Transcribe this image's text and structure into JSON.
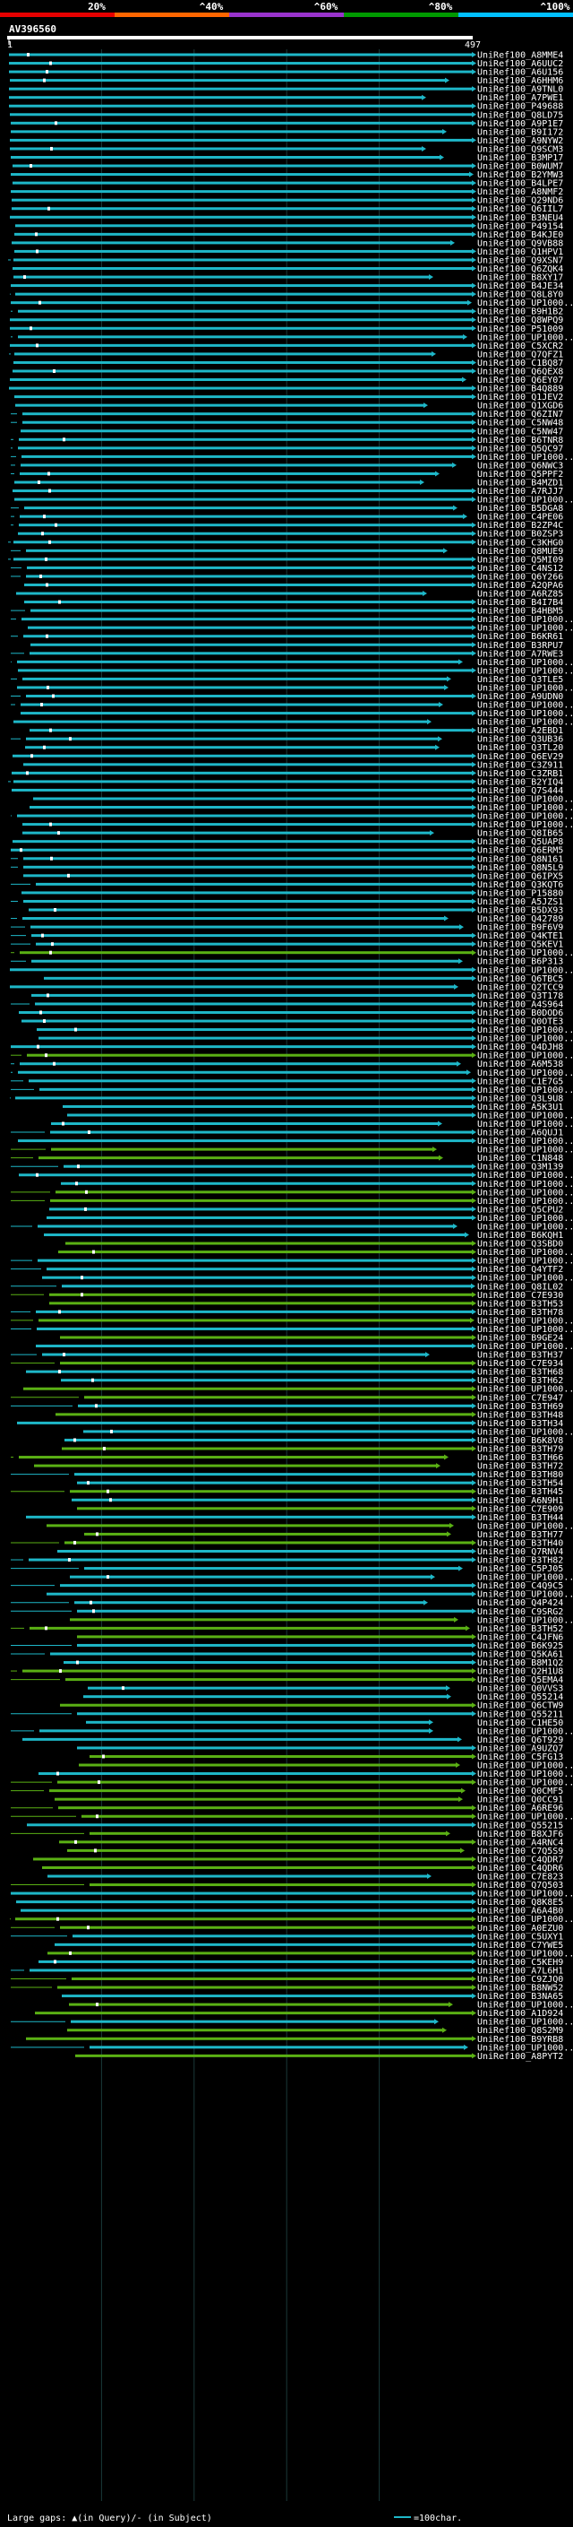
{
  "chart_data": {
    "type": "alignment-overview",
    "query_id": "AV396560",
    "query_length": 497,
    "ruler": {
      "start_label": "1",
      "end_label": "497"
    },
    "identity_legend": [
      {
        "label": "20%",
        "color": "#e60000"
      },
      {
        "label": "^40%",
        "color": "#ff6600"
      },
      {
        "label": "^60%",
        "color": "#9933cc"
      },
      {
        "label": "^80%",
        "color": "#009900"
      },
      {
        "label": "^100%",
        "color": "#00c0ff"
      }
    ],
    "footer": {
      "gaps_label": "Large gaps: ▲(in Query)/- (in Subject)",
      "scale_label": "=100char."
    },
    "colors": {
      "hi": "#1eb7c8",
      "mid": "#5ab014",
      "gap": "#ffffff"
    },
    "hits": [
      "UniRef100_A8MME4",
      "UniRef100_A6UUC2",
      "UniRef100_A6U156",
      "UniRef100_A6HHM6",
      "UniRef100_A9TNL0",
      "UniRef100_A7PWE1",
      "UniRef100_P49688",
      "UniRef100_Q8LD75",
      "UniRef100_A9P1E7",
      "UniRef100_B9I172",
      "UniRef100_A9NYW2",
      "UniRef100_Q9SCM3",
      "UniRef100_B3MP17",
      "UniRef100_B0WUM7",
      "UniRef100_B2YMW3",
      "UniRef100_B4LPE7",
      "UniRef100_A8NMF2",
      "UniRef100_Q29ND6",
      "UniRef100_Q6IIL7",
      "UniRef100_B3NEU4",
      "UniRef100_P49154",
      "UniRef100_B4KJE0",
      "UniRef100_Q9VB88",
      "UniRef100_Q1HPV1",
      "UniRef100_Q9XSN7",
      "UniRef100_Q6ZQK4",
      "UniRef100_B8XY17",
      "UniRef100_B4JE34",
      "UniRef100_Q8L8Y0",
      "UniRef100_UP1000..",
      "UniRef100_B9H1B2",
      "UniRef100_Q8WPQ9",
      "UniRef100_P51009",
      "UniRef100_UP1000..",
      "UniRef100_C5XCR2",
      "UniRef100_Q7QFZ1",
      "UniRef100_C1BQ87",
      "UniRef100_Q6QEX8",
      "UniRef100_Q6EY07",
      "UniRef100_B4Q889",
      "UniRef100_Q1JEV2",
      "UniRef100_Q1XGD6",
      "UniRef100_Q6ZIN7",
      "UniRef100_C5NW48",
      "UniRef100_C5NW47",
      "UniRef100_B6TNR8",
      "UniRef100_Q5QC97",
      "UniRef100_UP1000..",
      "UniRef100_Q6NWC3",
      "UniRef100_Q5PPF2",
      "UniRef100_B4MZD1",
      "UniRef100_A7RJJ7",
      "UniRef100_UP1000..",
      "UniRef100_B5DGA8",
      "UniRef100_C4PE06",
      "UniRef100_B2ZP4C",
      "UniRef100_B0ZSP3",
      "UniRef100_C3KHG0",
      "UniRef100_Q8MUE9",
      "UniRef100_Q5MI09",
      "UniRef100_C4NS12",
      "UniRef100_Q6Y266",
      "UniRef100_A2QPA6",
      "UniRef100_A6RZ85",
      "UniRef100_B4I7B4",
      "UniRef100_B4HBM5",
      "UniRef100_UP1000..",
      "UniRef100_UP1000..",
      "UniRef100_B6KR61",
      "UniRef100_B3RPU7",
      "UniRef100_A7RWE3",
      "UniRef100_UP1000..",
      "UniRef100_UP1000..",
      "UniRef100_Q3TLE5",
      "UniRef100_UP1000..",
      "UniRef100_A9UDN0",
      "UniRef100_UP1000..",
      "UniRef100_UP1000..",
      "UniRef100_UP1000..",
      "UniRef100_A2EBD1",
      "UniRef100_Q3UB36",
      "UniRef100_Q3TL20",
      "UniRef100_Q6EV29",
      "UniRef100_C3Z911",
      "UniRef100_C3ZRB1",
      "UniRef100_B2YIQ4",
      "UniRef100_Q7S444",
      "UniRef100_UP1000..",
      "UniRef100_UP1000..",
      "UniRef100_UP1000..",
      "UniRef100_UP1000..",
      "UniRef100_Q8IB65",
      "UniRef100_Q5UAP8",
      "UniRef100_Q6ERM5",
      "UniRef100_Q8N161",
      "UniRef100_Q8N5L9",
      "UniRef100_Q6IPX5",
      "UniRef100_Q3KQT6",
      "UniRef100_P15880",
      "UniRef100_A5JZS1",
      "UniRef100_B5DX93",
      "UniRef100_Q42789",
      "UniRef100_B9F6V9",
      "UniRef100_Q4KTE1",
      "UniRef100_Q5KEV1",
      "UniRef100_UP1000..",
      "UniRef100_B6P313",
      "UniRef100_UP1000..",
      "UniRef100_Q6TBC5",
      "UniRef100_Q2TCC9",
      "UniRef100_Q3T178",
      "UniRef100_A4S964",
      "UniRef100_B0DOD6",
      "UniRef100_Q0OTE3",
      "UniRef100_UP1000..",
      "UniRef100_UP1000..",
      "UniRef100_Q4DJH8",
      "UniRef100_UP1000..",
      "UniRef100_A6M538",
      "UniRef100_UP1000..",
      "UniRef100_C1E7G5",
      "UniRef100_UP1000..",
      "UniRef100_Q3L9U8",
      "UniRef100_A5K3U1",
      "UniRef100_UP1000..",
      "UniRef100_UP1000..",
      "UniRef100_A6QUJ1",
      "UniRef100_UP1000..",
      "UniRef100_UP1000..",
      "UniRef100_C1N848",
      "UniRef100_Q3M139",
      "UniRef100_UP1000..",
      "UniRef100_UP1000..",
      "UniRef100_UP1000..",
      "UniRef100_UP1000..",
      "UniRef100_Q5CPU2",
      "UniRef100_UP1000..",
      "UniRef100_UP1000..",
      "UniRef100_B6KQH1",
      "UniRef100_Q3SBD0",
      "UniRef100_UP1000..",
      "UniRef100_UP1000..",
      "UniRef100_Q4YTF2",
      "UniRef100_UP1000..",
      "UniRef100_Q8IL02",
      "UniRef100_C7E930",
      "UniRef100_B3TH53",
      "UniRef100_B3TH78",
      "UniRef100_UP1000..",
      "UniRef100_UP1000..",
      "UniRef100_B9GE24",
      "UniRef100_UP1000..",
      "UniRef100_B3TH37",
      "UniRef100_C7E934",
      "UniRef100_B3TH68",
      "UniRef100_B3TH62",
      "UniRef100_UP1000..",
      "UniRef100_C7E947",
      "UniRef100_B3TH69",
      "UniRef100_B3TH48",
      "UniRef100_B3TH34",
      "UniRef100_UP1000..",
      "UniRef100_B6K8V8",
      "UniRef100_B3TH79",
      "UniRef100_B3TH66",
      "UniRef100_B3TH72",
      "UniRef100_B3TH80",
      "UniRef100_B3TH54",
      "UniRef100_B3TH45",
      "UniRef100_A6N9H1",
      "UniRef100_C7E909",
      "UniRef100_B3TH44",
      "UniRef100_UP1000..",
      "UniRef100_B3TH77",
      "UniRef100_B3TH40",
      "UniRef100_Q7RNV4",
      "UniRef100_B3TH82",
      "UniRef100_C5PJ05",
      "UniRef100_UP1000..",
      "UniRef100_C4Q9C5",
      "UniRef100_UP1000..",
      "UniRef100_Q4P424",
      "UniRef100_C9SRG2",
      "UniRef100_UP1000..",
      "UniRef100_B3TH52",
      "UniRef100_C4JFN6",
      "UniRef100_B6K925",
      "UniRef100_Q5KA61",
      "UniRef100_B8M1Q2",
      "UniRef100_Q2H1U8",
      "UniRef100_Q5EMA4",
      "UniRef100_Q0VVS3",
      "UniRef100_Q55214",
      "UniRef100_Q6CTW9",
      "UniRef100_Q55211",
      "UniRef100_C1HE50",
      "UniRef100_UP1000..",
      "UniRef100_Q6T929",
      "UniRef100_A9UZQ7",
      "UniRef100_C5FG13",
      "UniRef100_UP1000..",
      "UniRef100_UP1000..",
      "UniRef100_UP1000..",
      "UniRef100_Q0CMF5",
      "UniRef100_Q0CC91",
      "UniRef100_A6RE96",
      "UniRef100_UP1000..",
      "UniRef100_Q55215",
      "UniRef100_B8XJF6",
      "UniRef100_A4RNC4",
      "UniRef100_C7Q5S9",
      "UniRef100_C4QDR7",
      "UniRef100_C4QDR6",
      "UniRef100_C7E823",
      "UniRef100_Q7Q503",
      "UniRef100_UP1000..",
      "UniRef100_Q8K8E5",
      "UniRef100_A6A4B0",
      "UniRef100_UP1000..",
      "UniRef100_A0EZU0",
      "UniRef100_C5UXY1",
      "UniRef100_C7YWE5",
      "UniRef100_UP1000..",
      "UniRef100_C5KEH9",
      "UniRef100_A7L6H1",
      "UniRef100_C9ZJQ0",
      "UniRef100_B8NW52",
      "UniRef100_B3NA65",
      "UniRef100_UP1000..",
      "UniRef100_A1D924",
      "UniRef100_UP1000..",
      "UniRef100_Q8S2M9",
      "UniRef100_B9YRB8",
      "UniRef100_UP1000..",
      "UniRef100_A8PYT2"
    ]
  }
}
